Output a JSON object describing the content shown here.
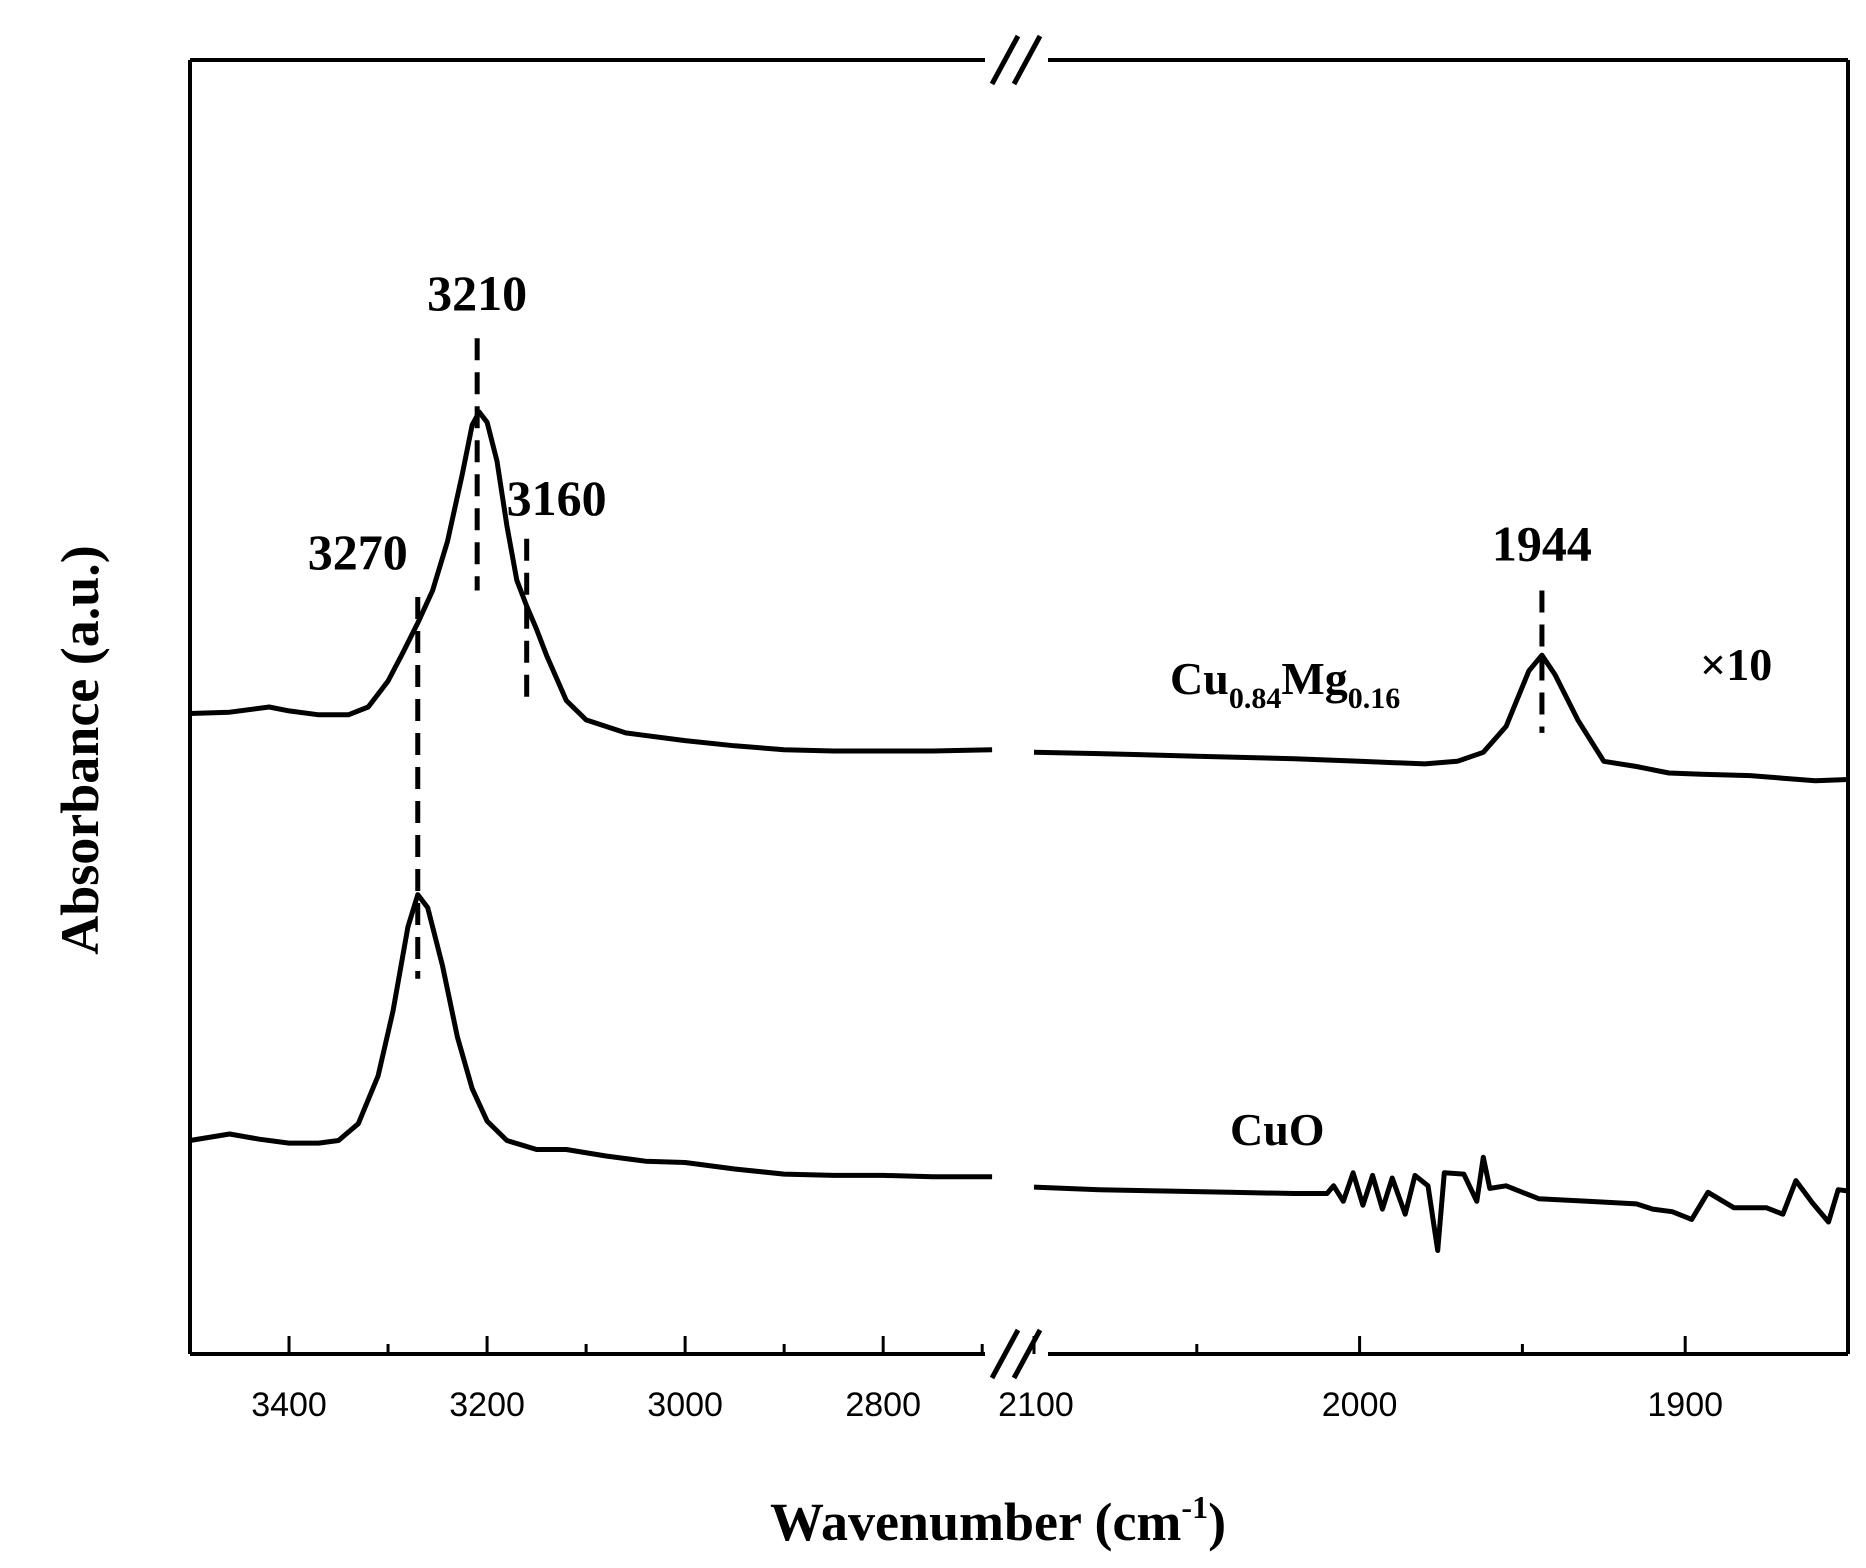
{
  "chart_data": {
    "type": "line",
    "xlabel": "Wavenumber (cm",
    "xlabel_sup": "-1",
    "xlabel_close": ")",
    "ylabel": "Absorbance (a.u.)",
    "x_reversed": true,
    "axis_break": true,
    "segments": [
      {
        "xlim": [
          3500,
          2680
        ],
        "ticks": [
          3400,
          3200,
          3000,
          2800
        ],
        "minor": [
          3500,
          3300,
          3100,
          2900,
          2700
        ]
      },
      {
        "xlim": [
          2100,
          1850
        ],
        "ticks": [
          2100,
          2000,
          1900
        ],
        "minor": [
          2050,
          1950
        ]
      }
    ],
    "ylim": [
      0,
      1
    ],
    "series": [
      {
        "name": "Cu",
        "name_sub1": "0.84",
        "name_mid": "Mg",
        "name_sub2": "0.16",
        "points": [
          [
            3500,
            0.495
          ],
          [
            3460,
            0.496
          ],
          [
            3420,
            0.5
          ],
          [
            3400,
            0.497
          ],
          [
            3370,
            0.494
          ],
          [
            3340,
            0.494
          ],
          [
            3320,
            0.5
          ],
          [
            3300,
            0.52
          ],
          [
            3285,
            0.542
          ],
          [
            3270,
            0.565
          ],
          [
            3255,
            0.59
          ],
          [
            3240,
            0.628
          ],
          [
            3225,
            0.68
          ],
          [
            3215,
            0.718
          ],
          [
            3208,
            0.728
          ],
          [
            3200,
            0.72
          ],
          [
            3190,
            0.69
          ],
          [
            3180,
            0.64
          ],
          [
            3170,
            0.598
          ],
          [
            3160,
            0.578
          ],
          [
            3150,
            0.56
          ],
          [
            3140,
            0.54
          ],
          [
            3120,
            0.505
          ],
          [
            3100,
            0.49
          ],
          [
            3060,
            0.48
          ],
          [
            3000,
            0.474
          ],
          [
            2950,
            0.47
          ],
          [
            2900,
            0.467
          ],
          [
            2850,
            0.466
          ],
          [
            2800,
            0.466
          ],
          [
            2750,
            0.466
          ],
          [
            2690,
            0.467
          ],
          [
            2100,
            0.465
          ],
          [
            2080,
            0.464
          ],
          [
            2050,
            0.462
          ],
          [
            2020,
            0.46
          ],
          [
            2000,
            0.458
          ],
          [
            1990,
            0.457
          ],
          [
            1980,
            0.456
          ],
          [
            1970,
            0.458
          ],
          [
            1962,
            0.465
          ],
          [
            1955,
            0.485
          ],
          [
            1948,
            0.528
          ],
          [
            1944,
            0.54
          ],
          [
            1940,
            0.525
          ],
          [
            1933,
            0.49
          ],
          [
            1925,
            0.458
          ],
          [
            1915,
            0.454
          ],
          [
            1905,
            0.449
          ],
          [
            1895,
            0.448
          ],
          [
            1880,
            0.447
          ],
          [
            1870,
            0.445
          ],
          [
            1860,
            0.443
          ],
          [
            1850,
            0.444
          ]
        ]
      },
      {
        "name": "CuO",
        "points": [
          [
            3500,
            0.165
          ],
          [
            3460,
            0.17
          ],
          [
            3430,
            0.166
          ],
          [
            3400,
            0.163
          ],
          [
            3370,
            0.163
          ],
          [
            3350,
            0.165
          ],
          [
            3330,
            0.178
          ],
          [
            3310,
            0.215
          ],
          [
            3295,
            0.265
          ],
          [
            3280,
            0.33
          ],
          [
            3270,
            0.355
          ],
          [
            3260,
            0.345
          ],
          [
            3245,
            0.3
          ],
          [
            3230,
            0.245
          ],
          [
            3215,
            0.205
          ],
          [
            3200,
            0.18
          ],
          [
            3180,
            0.165
          ],
          [
            3150,
            0.158
          ],
          [
            3120,
            0.158
          ],
          [
            3080,
            0.153
          ],
          [
            3040,
            0.149
          ],
          [
            3000,
            0.148
          ],
          [
            2950,
            0.143
          ],
          [
            2900,
            0.139
          ],
          [
            2850,
            0.138
          ],
          [
            2800,
            0.138
          ],
          [
            2750,
            0.137
          ],
          [
            2690,
            0.137
          ],
          [
            2100,
            0.129
          ],
          [
            2080,
            0.127
          ],
          [
            2060,
            0.126
          ],
          [
            2040,
            0.125
          ],
          [
            2020,
            0.124
          ],
          [
            2010,
            0.124
          ],
          [
            2008,
            0.13
          ],
          [
            2005,
            0.118
          ],
          [
            2002,
            0.14
          ],
          [
            1999,
            0.115
          ],
          [
            1996,
            0.138
          ],
          [
            1993,
            0.112
          ],
          [
            1990,
            0.136
          ],
          [
            1986,
            0.108
          ],
          [
            1983,
            0.138
          ],
          [
            1979,
            0.13
          ],
          [
            1976,
            0.08
          ],
          [
            1974,
            0.14
          ],
          [
            1968,
            0.139
          ],
          [
            1964,
            0.118
          ],
          [
            1962,
            0.152
          ],
          [
            1960,
            0.128
          ],
          [
            1955,
            0.13
          ],
          [
            1950,
            0.125
          ],
          [
            1945,
            0.12
          ],
          [
            1930,
            0.118
          ],
          [
            1915,
            0.116
          ],
          [
            1910,
            0.112
          ],
          [
            1904,
            0.11
          ],
          [
            1898,
            0.104
          ],
          [
            1893,
            0.125
          ],
          [
            1885,
            0.113
          ],
          [
            1875,
            0.113
          ],
          [
            1870,
            0.108
          ],
          [
            1866,
            0.134
          ],
          [
            1861,
            0.117
          ],
          [
            1856,
            0.102
          ],
          [
            1853,
            0.127
          ],
          [
            1850,
            0.126
          ]
        ]
      }
    ],
    "peaks": [
      {
        "label": "3270",
        "x": 3270,
        "y_top": 0.585,
        "y_bottom": 0.29
      },
      {
        "label": "3210",
        "x": 3210,
        "y_top": 0.785,
        "y_bottom": 0.59
      },
      {
        "label": "3160",
        "x": 3160,
        "y_top": 0.63,
        "y_bottom": 0.5
      },
      {
        "label": "1944",
        "x": 1944,
        "y_top": 0.59,
        "y_bottom": 0.48
      }
    ],
    "annotation": "×10"
  }
}
